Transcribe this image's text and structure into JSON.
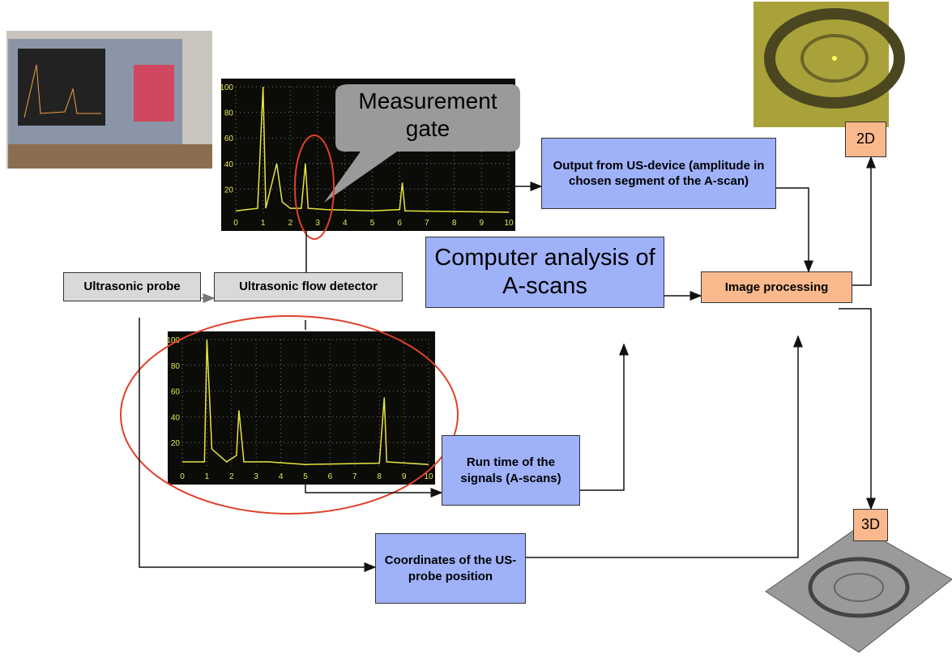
{
  "callout": {
    "label": "Measurement gate"
  },
  "boxes": {
    "output": "Output from US-device (amplitude in chosen segment of the A-scan)",
    "computer": "Computer analysis of A-scans",
    "image_processing": "Image processing",
    "probe": "Ultrasonic probe",
    "detector": "Ultrasonic flow detector",
    "runtime": "Run time of the signals (A-scans)",
    "coordinates": "Coordinates of the US-probe position",
    "badge_2d": "2D",
    "badge_3d": "3D"
  },
  "scope_top": {
    "x_labels": [
      "0",
      "1",
      "2",
      "3",
      "4",
      "5",
      "6",
      "7",
      "8",
      "9",
      "10"
    ],
    "y_labels": [
      "20",
      "40",
      "60",
      "80",
      "100"
    ]
  },
  "scope_bottom": {
    "x_labels": [
      "0",
      "1",
      "2",
      "3",
      "4",
      "5",
      "6",
      "7",
      "8",
      "9",
      "10"
    ],
    "y_labels": [
      "20",
      "40",
      "60",
      "80",
      "100"
    ]
  }
}
